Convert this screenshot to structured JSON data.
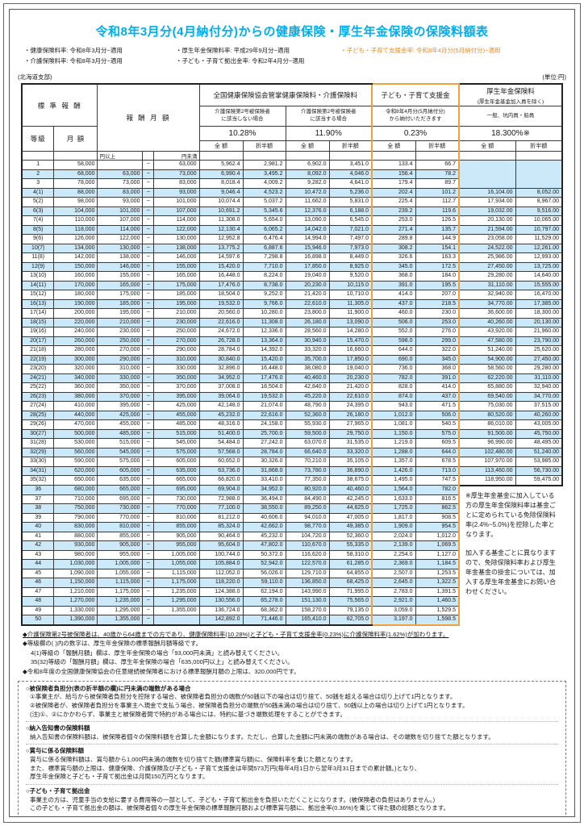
{
  "page": {
    "title": "令和8年3月分(4月納付分)からの健康保険・厚生年金保険の保険料額表",
    "notes": {
      "health": "・健康保険料率: 令和8年3月分~適用",
      "care": "・介護保険料率: 令和8年3月分~適用",
      "pension": "・厚生年金保険料率: 平成29年9月分~適用",
      "contribution": "・子ども・子育て拠出金率: 令和2年4月分~適用",
      "support": "・子ども・子育て支援金率: 令和8年4月分(5月納付分)~適用"
    },
    "branch": "(北海道支部)",
    "unit": "(単位:円)"
  },
  "table": {
    "headers": {
      "standard": "標 準 報 酬",
      "grade": "等級",
      "monthly": "月 額",
      "monthly_range": "報 酬 月 額",
      "yen_from": "円以上",
      "yen_to": "円未満",
      "tilde": "~",
      "health_title": "全国健康保険協会管掌健康保険料・介護保険料",
      "care_no_l1": "介護保険第2号被保険者",
      "care_no_l2": "に該当しない場合",
      "care_yes_l1": "介護保険第2号被保険者",
      "care_yes_l2": "に該当する場合",
      "support_title": "子ども・子育て支援金",
      "support_sub_l1": "令和8年4月分(5月納付分)",
      "support_sub_l2": "から納付いただきます",
      "pension_title": "厚生年金保険料",
      "pension_sub": "(厚生年金基金加入員を除く)",
      "pension_type": "一般、坑内員・船員",
      "rate_health_no_care": "10.28%",
      "rate_health_care": "11.90%",
      "rate_support": "0.23%",
      "rate_pension": "18.300%※",
      "full_amount": "全 額",
      "half_amount": "折半額"
    },
    "pension_note": [
      "※厚生年金基金に加入している方の厚生年金保険料率は基金ごとに定められている免除保険料率(2.4%~5.0%)を控除した率となります。",
      "加入する基金ごとに異なりますので、免除保険料率および厚生年金基金の掛金については、加入する厚生年金基金にお問い合わせください。"
    ],
    "rows": [
      [
        "1",
        "58,000",
        "",
        "63,000",
        "5,962.4",
        "2,981.2",
        "6,902.0",
        "3,451.0",
        "133.4",
        "66.7",
        "",
        ""
      ],
      [
        "2",
        "68,000",
        "63,000",
        "73,000",
        "6,990.4",
        "3,495.2",
        "8,092.0",
        "4,046.0",
        "156.4",
        "78.2",
        "",
        ""
      ],
      [
        "3",
        "78,000",
        "73,000",
        "83,000",
        "8,018.4",
        "4,009.2",
        "9,282.0",
        "4,641.0",
        "179.4",
        "89.7",
        "",
        ""
      ],
      [
        "4(1)",
        "88,000",
        "83,000",
        "93,000",
        "9,046.4",
        "4,523.2",
        "10,472.0",
        "5,236.0",
        "202.4",
        "101.2",
        "16,104.00",
        "8,052.00"
      ],
      [
        "5(2)",
        "98,000",
        "93,000",
        "101,000",
        "10,074.4",
        "5,037.2",
        "11,662.0",
        "5,831.0",
        "225.4",
        "112.7",
        "17,934.00",
        "8,967.00"
      ],
      [
        "6(3)",
        "104,000",
        "101,000",
        "107,000",
        "10,691.2",
        "5,345.6",
        "12,376.0",
        "6,188.0",
        "239.2",
        "119.6",
        "19,032.00",
        "9,516.00"
      ],
      [
        "7(4)",
        "110,000",
        "107,000",
        "114,000",
        "11,308.0",
        "5,654.0",
        "13,090.0",
        "6,545.0",
        "253.0",
        "126.5",
        "20,130.00",
        "10,065.00"
      ],
      [
        "8(5)",
        "118,000",
        "114,000",
        "122,000",
        "12,130.4",
        "6,065.2",
        "14,042.0",
        "7,021.0",
        "271.4",
        "135.7",
        "21,594.00",
        "10,797.00"
      ],
      [
        "9(6)",
        "126,000",
        "122,000",
        "130,000",
        "12,952.8",
        "6,476.4",
        "14,994.0",
        "7,497.0",
        "289.8",
        "144.9",
        "23,058.00",
        "11,529.00"
      ],
      [
        "10(7)",
        "134,000",
        "130,000",
        "138,000",
        "13,775.2",
        "6,887.6",
        "15,946.0",
        "7,973.0",
        "308.2",
        "154.1",
        "24,522.00",
        "12,261.00"
      ],
      [
        "11(8)",
        "142,000",
        "138,000",
        "146,000",
        "14,597.6",
        "7,298.8",
        "16,898.0",
        "8,449.0",
        "326.6",
        "163.3",
        "25,986.00",
        "12,993.00"
      ],
      [
        "12(9)",
        "150,000",
        "146,000",
        "155,000",
        "15,420.0",
        "7,710.0",
        "17,850.0",
        "8,925.0",
        "345.0",
        "172.5",
        "27,450.00",
        "13,725.00"
      ],
      [
        "13(10)",
        "160,000",
        "155,000",
        "165,000",
        "16,448.0",
        "8,224.0",
        "19,040.0",
        "9,520.0",
        "368.0",
        "184.0",
        "29,280.00",
        "14,640.00"
      ],
      [
        "14(11)",
        "170,000",
        "165,000",
        "175,000",
        "17,476.0",
        "8,738.0",
        "20,230.0",
        "10,115.0",
        "391.0",
        "195.5",
        "31,110.00",
        "15,555.00"
      ],
      [
        "15(12)",
        "180,000",
        "175,000",
        "185,000",
        "18,504.0",
        "9,252.0",
        "21,420.0",
        "10,710.0",
        "414.0",
        "207.0",
        "32,940.00",
        "16,470.00"
      ],
      [
        "16(13)",
        "190,000",
        "185,000",
        "195,000",
        "19,532.0",
        "9,766.0",
        "22,610.0",
        "11,305.0",
        "437.0",
        "218.5",
        "34,770.00",
        "17,385.00"
      ],
      [
        "17(14)",
        "200,000",
        "195,000",
        "210,000",
        "20,560.0",
        "10,280.0",
        "23,800.0",
        "11,900.0",
        "460.0",
        "230.0",
        "36,600.00",
        "18,300.00"
      ],
      [
        "18(15)",
        "220,000",
        "210,000",
        "230,000",
        "22,616.0",
        "11,308.0",
        "26,180.0",
        "13,090.0",
        "506.0",
        "253.0",
        "40,260.00",
        "20,130.00"
      ],
      [
        "19(16)",
        "240,000",
        "230,000",
        "250,000",
        "24,672.0",
        "12,336.0",
        "28,560.0",
        "14,280.0",
        "552.0",
        "276.0",
        "43,920.00",
        "21,960.00"
      ],
      [
        "20(17)",
        "260,000",
        "250,000",
        "270,000",
        "26,728.0",
        "13,364.0",
        "30,940.0",
        "15,470.0",
        "598.0",
        "299.0",
        "47,580.00",
        "23,790.00"
      ],
      [
        "21(18)",
        "280,000",
        "270,000",
        "290,000",
        "28,784.0",
        "14,392.0",
        "33,320.0",
        "16,660.0",
        "644.0",
        "322.0",
        "51,240.00",
        "25,620.00"
      ],
      [
        "22(19)",
        "300,000",
        "290,000",
        "310,000",
        "30,840.0",
        "15,420.0",
        "35,700.0",
        "17,850.0",
        "690.0",
        "345.0",
        "54,900.00",
        "27,450.00"
      ],
      [
        "23(20)",
        "320,000",
        "310,000",
        "330,000",
        "32,896.0",
        "16,448.0",
        "38,080.0",
        "19,040.0",
        "736.0",
        "368.0",
        "58,560.00",
        "29,280.00"
      ],
      [
        "24(21)",
        "340,000",
        "330,000",
        "350,000",
        "34,952.0",
        "17,476.0",
        "40,460.0",
        "20,230.0",
        "782.0",
        "391.0",
        "62,220.00",
        "31,110.00"
      ],
      [
        "25(22)",
        "360,000",
        "350,000",
        "370,000",
        "37,008.0",
        "18,504.0",
        "42,840.0",
        "21,420.0",
        "828.0",
        "414.0",
        "65,880.00",
        "32,940.00"
      ],
      [
        "26(23)",
        "380,000",
        "370,000",
        "395,000",
        "39,064.0",
        "19,532.0",
        "45,220.0",
        "22,610.0",
        "874.0",
        "437.0",
        "69,540.00",
        "34,770.00"
      ],
      [
        "27(24)",
        "410,000",
        "395,000",
        "425,000",
        "42,148.0",
        "21,074.0",
        "48,790.0",
        "24,395.0",
        "943.0",
        "471.5",
        "75,030.00",
        "37,515.00"
      ],
      [
        "28(25)",
        "440,000",
        "425,000",
        "455,000",
        "45,232.0",
        "22,616.0",
        "52,360.0",
        "26,180.0",
        "1,012.0",
        "506.0",
        "80,520.00",
        "40,260.00"
      ],
      [
        "29(26)",
        "470,000",
        "455,000",
        "485,000",
        "48,316.0",
        "24,158.0",
        "55,930.0",
        "27,965.0",
        "1,081.0",
        "540.5",
        "86,010.00",
        "43,005.00"
      ],
      [
        "30(27)",
        "500,000",
        "485,000",
        "515,000",
        "51,400.0",
        "25,700.0",
        "59,500.0",
        "29,750.0",
        "1,150.0",
        "575.0",
        "91,500.00",
        "45,750.00"
      ],
      [
        "31(28)",
        "530,000",
        "515,000",
        "545,000",
        "54,484.0",
        "27,242.0",
        "63,070.0",
        "31,535.0",
        "1,219.0",
        "609.5",
        "96,990.00",
        "48,495.00"
      ],
      [
        "32(29)",
        "560,000",
        "545,000",
        "575,000",
        "57,568.0",
        "28,784.0",
        "66,640.0",
        "33,320.0",
        "1,288.0",
        "644.0",
        "102,480.00",
        "51,240.00"
      ],
      [
        "33(30)",
        "590,000",
        "575,000",
        "605,000",
        "60,652.0",
        "30,326.0",
        "70,210.0",
        "35,105.0",
        "1,357.0",
        "678.5",
        "107,970.00",
        "53,985.00"
      ],
      [
        "34(31)",
        "620,000",
        "605,000",
        "635,000",
        "63,736.0",
        "31,868.0",
        "73,780.0",
        "36,890.0",
        "1,426.0",
        "713.0",
        "113,460.00",
        "56,730.00"
      ],
      [
        "35(32)",
        "650,000",
        "635,000",
        "665,000",
        "66,820.0",
        "33,410.0",
        "77,350.0",
        "38,675.0",
        "1,495.0",
        "747.5",
        "118,950.00",
        "59,475.00"
      ],
      [
        "36",
        "680,000",
        "665,000",
        "695,000",
        "69,904.0",
        "34,952.0",
        "80,920.0",
        "40,460.0",
        "1,564.0",
        "782.0",
        null,
        null
      ],
      [
        "37",
        "710,000",
        "695,000",
        "730,000",
        "72,988.0",
        "36,494.0",
        "84,490.0",
        "42,245.0",
        "1,633.0",
        "816.5",
        null,
        null
      ],
      [
        "38",
        "750,000",
        "730,000",
        "770,000",
        "77,100.0",
        "38,550.0",
        "89,250.0",
        "44,625.0",
        "1,725.0",
        "862.5",
        null,
        null
      ],
      [
        "39",
        "790,000",
        "770,000",
        "810,000",
        "81,212.0",
        "40,606.0",
        "94,010.0",
        "47,005.0",
        "1,817.0",
        "908.5",
        null,
        null
      ],
      [
        "40",
        "830,000",
        "810,000",
        "855,000",
        "85,324.0",
        "42,662.0",
        "98,770.0",
        "49,385.0",
        "1,909.0",
        "954.5",
        null,
        null
      ],
      [
        "41",
        "880,000",
        "855,000",
        "905,000",
        "90,464.0",
        "45,232.0",
        "104,720.0",
        "52,360.0",
        "2,024.0",
        "1,012.0",
        null,
        null
      ],
      [
        "42",
        "930,000",
        "905,000",
        "955,000",
        "95,604.0",
        "47,802.0",
        "110,670.0",
        "55,335.0",
        "2,139.0",
        "1,069.5",
        null,
        null
      ],
      [
        "43",
        "980,000",
        "955,000",
        "1,005,000",
        "100,744.0",
        "50,372.0",
        "116,620.0",
        "58,310.0",
        "2,254.0",
        "1,127.0",
        null,
        null
      ],
      [
        "44",
        "1,030,000",
        "1,005,000",
        "1,055,000",
        "105,884.0",
        "52,942.0",
        "122,570.0",
        "61,285.0",
        "2,369.0",
        "1,184.5",
        null,
        null
      ],
      [
        "45",
        "1,090,000",
        "1,055,000",
        "1,115,000",
        "112,052.0",
        "56,026.0",
        "129,710.0",
        "64,855.0",
        "2,507.0",
        "1,253.5",
        null,
        null
      ],
      [
        "46",
        "1,150,000",
        "1,115,000",
        "1,175,000",
        "118,220.0",
        "59,110.0",
        "136,850.0",
        "68,425.0",
        "2,645.0",
        "1,322.5",
        null,
        null
      ],
      [
        "47",
        "1,210,000",
        "1,175,000",
        "1,235,000",
        "124,388.0",
        "62,194.0",
        "143,990.0",
        "71,995.0",
        "2,783.0",
        "1,391.5",
        null,
        null
      ],
      [
        "48",
        "1,270,000",
        "1,235,000",
        "1,295,000",
        "130,556.0",
        "65,278.0",
        "151,130.0",
        "75,565.0",
        "2,921.0",
        "1,460.5",
        null,
        null
      ],
      [
        "49",
        "1,330,000",
        "1,295,000",
        "1,355,000",
        "136,724.0",
        "68,362.0",
        "158,270.0",
        "79,135.0",
        "3,059.0",
        "1,529.5",
        null,
        null
      ],
      [
        "50",
        "1,390,000",
        "1,355,000",
        "",
        "142,892.0",
        "71,446.0",
        "165,410.0",
        "82,705.0",
        "3,197.0",
        "1,598.5",
        null,
        null
      ]
    ]
  },
  "footnotes": [
    {
      "text": "◆介護保険第2号被保険者は、40歳から64歳までの方であり、健康保険料率(10.28%)と子ども・子育て支援金率(0.23%)に介護保険料率(1.62%)が加わります。",
      "underline": true,
      "indent": 0
    },
    {
      "text": "◆等級欄の( )内の数字は、厚生年金保険の標準報酬月額等級です。",
      "underline": false,
      "indent": 0
    },
    {
      "text": "4(1)等級の「報酬月額」欄は、厚生年金保険の場合「93,000円未満」と読み替えてください。",
      "underline": false,
      "indent": 1
    },
    {
      "text": "35(32)等級の「報酬月額」欄は、厚生年金保険の場合「635,000円以上」と読み替えてください。",
      "underline": false,
      "indent": 1
    },
    {
      "text": "◆令和8年度の全国健康保険協会の任意継続被保険者における標準報酬月額の上限は、320,000円です。",
      "underline": false,
      "indent": 0
    }
  ],
  "info_box": {
    "sections": [
      {
        "title": "○被保険者負担分(表の折半額の欄)に円未満の端数がある場合",
        "lines": [
          "①事業主が、給与から被保険者負担分を控除する場合、被保険者負担分の端数が50銭以下の場合は切り捨て、50銭を超える場合は切り上げて1円となります。",
          "②被保険者が、被保険者負担分を事業主へ現金で支払う場合、被保険者負担分の端数が50銭未満の場合は切り捨て、50銭以上の場合は切り上げて1円となります。",
          "(注)①、②にかかわらず、事業主と被保険者間で特約がある場合には、特約に基づき端数処理をすることができます。"
        ]
      },
      {
        "title": "○納入告知書の保険料額",
        "lines": [
          "納入告知書の保険料額は、被保険者個々の保険料額を合算した金額になります。ただし、合算した金額に円未満の端数がある場合は、その端数を切り捨てた額となります。"
        ]
      },
      {
        "title": "○賞与に係る保険料額",
        "lines": [
          "賞与に係る保険料額は、賞与額から1,000円未満の端数を切り捨てた額(標準賞与額)に、保険料率を乗じた額となります。",
          "また、標準賞与額の上限は、健康保険、介護保険及び子ども・子育て支援金は年間573万円(毎年4月1日から翌年3月31日までの累計額。)となり、",
          "厚生年金保険と子ども・子育て拠出金は月間150万円となります。"
        ]
      },
      {
        "title": "○子ども・子育て拠出金",
        "lines": [
          "事業主の方は、児童手当の支給に要する費用等の一部として、子ども・子育て拠出金を負担いただくことになります。(被保険者の負担はありません。)",
          "この子ども・子育て拠出金の額は、被保険者個々の厚生年金保険の標準報酬月額および標準賞与額に、拠出金率(0.36%)を乗じて得た額の総額となります。"
        ]
      }
    ]
  },
  "colors": {
    "accent_blue": "#00aeef",
    "highlight_orange": "#f0a03c",
    "row_stripe_blue": "#cbe9f8"
  }
}
